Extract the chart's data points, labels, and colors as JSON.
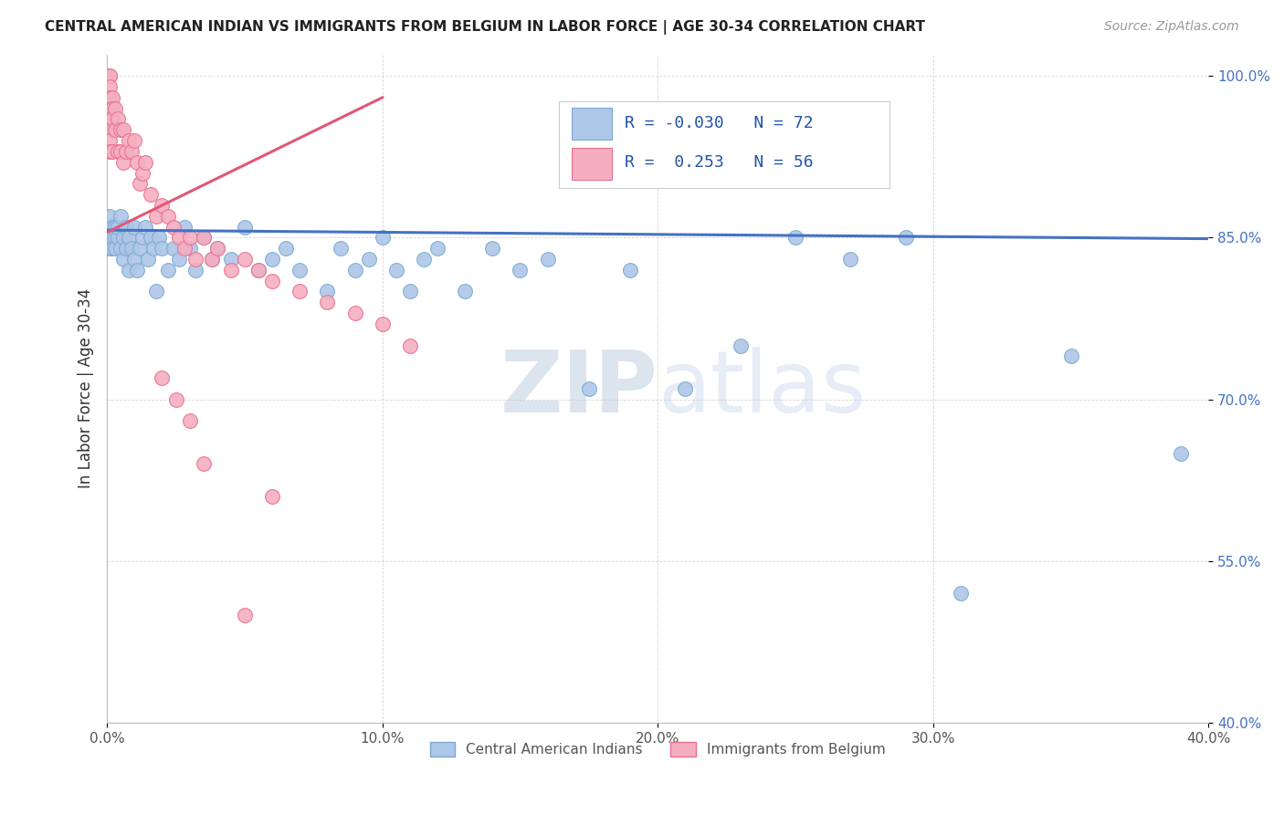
{
  "title": "CENTRAL AMERICAN INDIAN VS IMMIGRANTS FROM BELGIUM IN LABOR FORCE | AGE 30-34 CORRELATION CHART",
  "source": "Source: ZipAtlas.com",
  "ylabel": "In Labor Force | Age 30-34",
  "xlim": [
    0.0,
    0.4
  ],
  "ylim": [
    0.4,
    1.02
  ],
  "yticks": [
    0.4,
    0.55,
    0.7,
    0.85,
    1.0
  ],
  "ytick_labels": [
    "40.0%",
    "55.0%",
    "70.0%",
    "85.0%",
    "100.0%"
  ],
  "xticks": [
    0.0,
    0.1,
    0.2,
    0.3,
    0.4
  ],
  "xtick_labels": [
    "0.0%",
    "10.0%",
    "20.0%",
    "30.0%",
    "40.0%"
  ],
  "blue_color": "#aec6e8",
  "pink_color": "#f4aec0",
  "blue_edge": "#7aabcf",
  "pink_edge": "#e87090",
  "blue_line_color": "#4472c4",
  "pink_line_color": "#e05878",
  "R_blue": -0.03,
  "N_blue": 72,
  "R_pink": 0.253,
  "N_pink": 56,
  "legend_label_blue": "Central American Indians",
  "legend_label_pink": "Immigrants from Belgium",
  "watermark_zip": "ZIP",
  "watermark_atlas": "atlas",
  "blue_x": [
    0.001,
    0.001,
    0.001,
    0.001,
    0.001,
    0.002,
    0.002,
    0.002,
    0.003,
    0.003,
    0.003,
    0.004,
    0.004,
    0.005,
    0.005,
    0.006,
    0.006,
    0.007,
    0.007,
    0.008,
    0.008,
    0.009,
    0.01,
    0.01,
    0.011,
    0.012,
    0.013,
    0.014,
    0.015,
    0.016,
    0.017,
    0.018,
    0.019,
    0.02,
    0.022,
    0.024,
    0.026,
    0.028,
    0.03,
    0.032,
    0.035,
    0.038,
    0.04,
    0.045,
    0.05,
    0.055,
    0.06,
    0.065,
    0.07,
    0.08,
    0.085,
    0.09,
    0.095,
    0.1,
    0.105,
    0.11,
    0.115,
    0.12,
    0.13,
    0.14,
    0.15,
    0.16,
    0.175,
    0.19,
    0.21,
    0.23,
    0.25,
    0.27,
    0.29,
    0.31,
    0.35,
    0.39
  ],
  "blue_y": [
    0.86,
    0.85,
    0.85,
    0.84,
    0.87,
    0.86,
    0.85,
    0.84,
    0.86,
    0.85,
    0.84,
    0.85,
    0.86,
    0.84,
    0.87,
    0.85,
    0.83,
    0.86,
    0.84,
    0.85,
    0.82,
    0.84,
    0.86,
    0.83,
    0.82,
    0.84,
    0.85,
    0.86,
    0.83,
    0.85,
    0.84,
    0.8,
    0.85,
    0.84,
    0.82,
    0.84,
    0.83,
    0.86,
    0.84,
    0.82,
    0.85,
    0.83,
    0.84,
    0.83,
    0.86,
    0.82,
    0.83,
    0.84,
    0.82,
    0.8,
    0.84,
    0.82,
    0.83,
    0.85,
    0.82,
    0.8,
    0.83,
    0.84,
    0.8,
    0.84,
    0.82,
    0.83,
    0.71,
    0.82,
    0.71,
    0.75,
    0.85,
    0.83,
    0.85,
    0.52,
    0.74,
    0.65
  ],
  "pink_x": [
    0.001,
    0.001,
    0.001,
    0.001,
    0.001,
    0.001,
    0.001,
    0.001,
    0.001,
    0.002,
    0.002,
    0.002,
    0.002,
    0.003,
    0.003,
    0.004,
    0.004,
    0.005,
    0.005,
    0.006,
    0.006,
    0.007,
    0.008,
    0.009,
    0.01,
    0.011,
    0.012,
    0.013,
    0.014,
    0.016,
    0.018,
    0.02,
    0.022,
    0.024,
    0.026,
    0.028,
    0.03,
    0.032,
    0.035,
    0.038,
    0.04,
    0.045,
    0.05,
    0.055,
    0.06,
    0.07,
    0.08,
    0.09,
    0.1,
    0.11,
    0.02,
    0.025,
    0.03,
    0.035,
    0.05,
    0.06
  ],
  "pink_y": [
    1.0,
    1.0,
    0.99,
    0.98,
    0.97,
    0.96,
    0.95,
    0.94,
    0.93,
    0.98,
    0.97,
    0.96,
    0.93,
    0.97,
    0.95,
    0.96,
    0.93,
    0.95,
    0.93,
    0.95,
    0.92,
    0.93,
    0.94,
    0.93,
    0.94,
    0.92,
    0.9,
    0.91,
    0.92,
    0.89,
    0.87,
    0.88,
    0.87,
    0.86,
    0.85,
    0.84,
    0.85,
    0.83,
    0.85,
    0.83,
    0.84,
    0.82,
    0.83,
    0.82,
    0.81,
    0.8,
    0.79,
    0.78,
    0.77,
    0.75,
    0.72,
    0.7,
    0.68,
    0.64,
    0.5,
    0.61
  ],
  "blue_trend_x": [
    0.0,
    0.4
  ],
  "blue_trend_y": [
    0.857,
    0.849
  ],
  "pink_trend_x": [
    0.0,
    0.1
  ],
  "pink_trend_y": [
    0.855,
    0.98
  ]
}
